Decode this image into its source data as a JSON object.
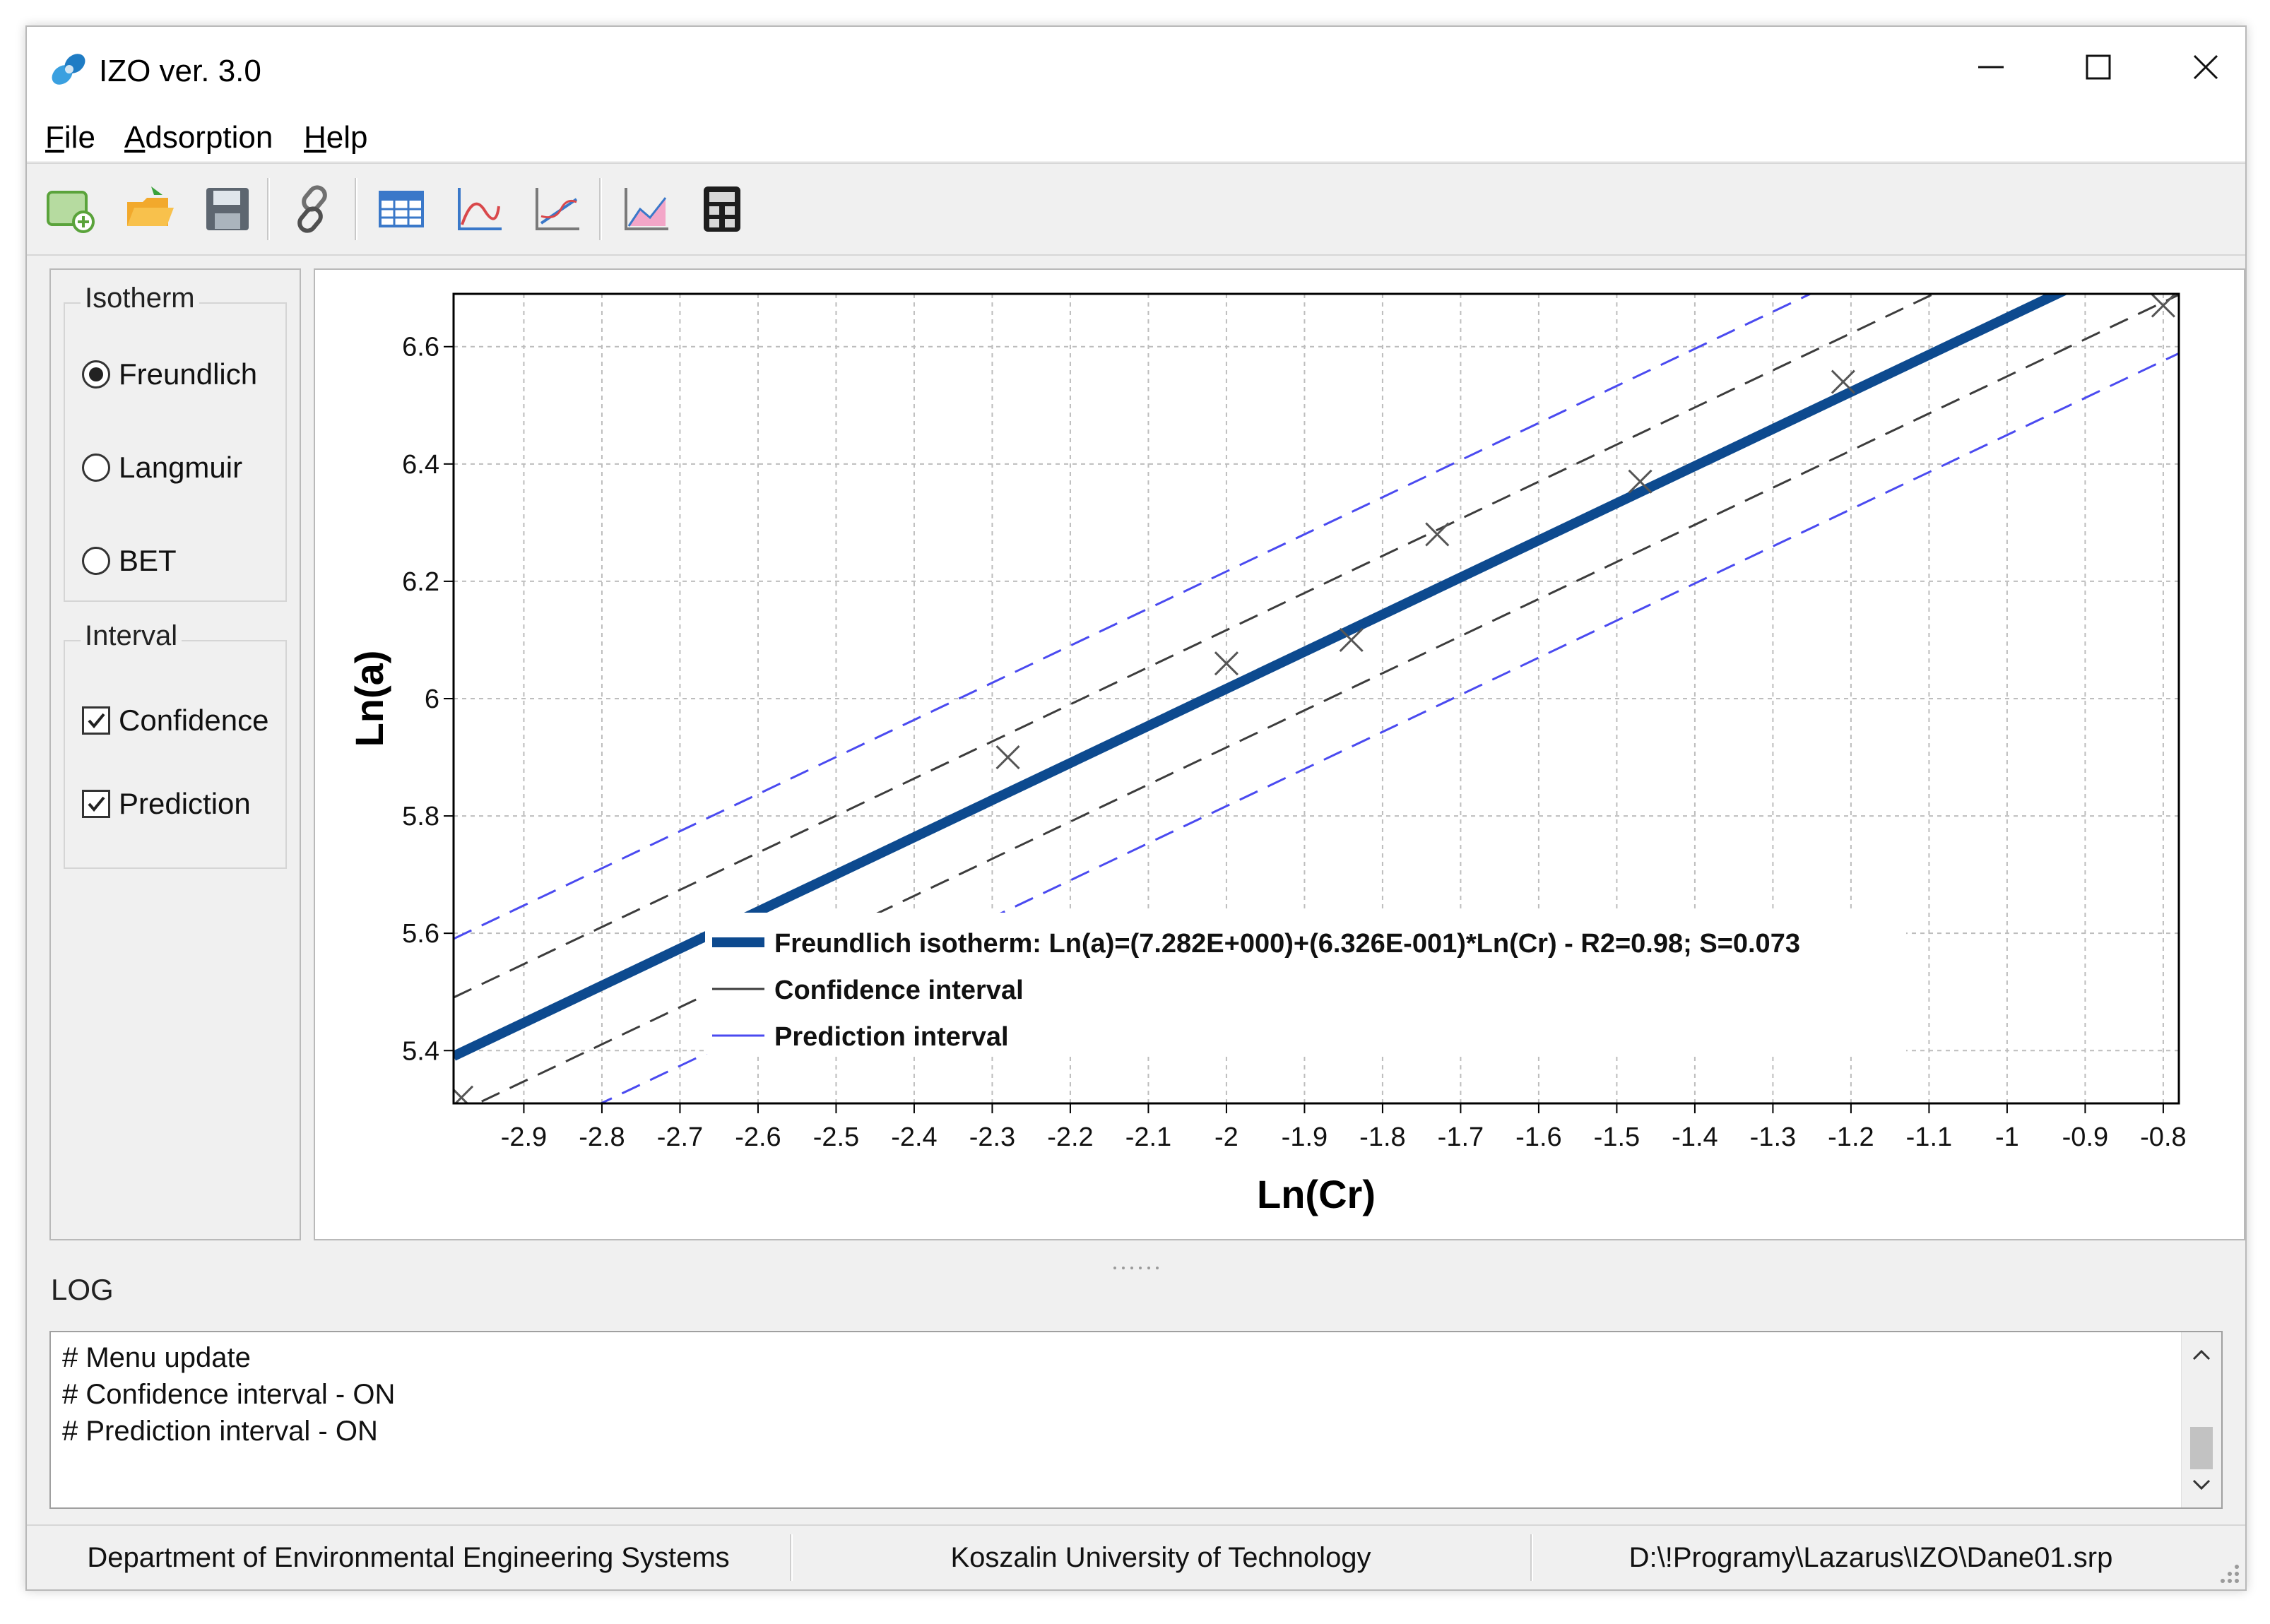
{
  "window": {
    "title": "IZO ver. 3.0"
  },
  "menu": [
    {
      "underline": "F",
      "rest": "ile"
    },
    {
      "underline": "A",
      "rest": "dsorption"
    },
    {
      "underline": "H",
      "rest": "elp"
    }
  ],
  "toolbar": {
    "icons": [
      "new-data-icon",
      "open-folder-icon",
      "save-icon",
      "link-icon",
      "table-icon",
      "isotherm-plot-icon",
      "linear-plot-icon",
      "interval-plot-icon",
      "calculator-icon"
    ]
  },
  "isotherm": {
    "title": "Isotherm",
    "options": [
      "Freundlich",
      "Langmuir",
      "BET"
    ],
    "selected": "Freundlich"
  },
  "interval": {
    "title": "Interval",
    "confidence_label": "Confidence",
    "confidence_checked": true,
    "prediction_label": "Prediction",
    "prediction_checked": true
  },
  "chart_data": {
    "type": "scatter",
    "xlabel": "Ln(Cr)",
    "ylabel": "Ln(a)",
    "xlim": [
      -2.99,
      -0.78
    ],
    "ylim": [
      5.31,
      6.69
    ],
    "x_ticks": [
      -2.9,
      -2.8,
      -2.7,
      -2.6,
      -2.5,
      -2.4,
      -2.3,
      -2.2,
      -2.1,
      -2,
      -1.9,
      -1.8,
      -1.7,
      -1.6,
      -1.5,
      -1.4,
      -1.3,
      -1.2,
      -1.1,
      -1,
      -0.9,
      -0.8
    ],
    "y_ticks": [
      5.4,
      5.6,
      5.8,
      6,
      6.2,
      6.4,
      6.6
    ],
    "grid": true,
    "legend_position": "bottom-center",
    "points": [
      {
        "x": -2.98,
        "y": 5.32
      },
      {
        "x": -2.28,
        "y": 5.9
      },
      {
        "x": -2.0,
        "y": 6.06
      },
      {
        "x": -1.84,
        "y": 6.1
      },
      {
        "x": -1.73,
        "y": 6.28
      },
      {
        "x": -1.47,
        "y": 6.37
      },
      {
        "x": -1.21,
        "y": 6.54
      },
      {
        "x": -0.8,
        "y": 6.67
      }
    ],
    "fit": {
      "intercept": 7.282,
      "slope": 0.6326
    },
    "confidence_halfwidth": 0.1,
    "prediction_halfwidth": 0.2,
    "series": [
      {
        "name": "Freundlich isotherm: Ln(a)=(7.282E+000)+(6.326E-001)*Ln(Cr) - R2=0.98; S=0.073",
        "color": "#0d4a8f"
      },
      {
        "name": "Confidence interval",
        "color": "#3c3c3c"
      },
      {
        "name": "Prediction interval",
        "color": "#4a4af0"
      }
    ]
  },
  "log": {
    "title": "LOG",
    "lines": [
      "# Menu update",
      "# Confidence interval - ON",
      "# Prediction interval - ON"
    ]
  },
  "status": {
    "left": "Department of Environmental Engineering Systems",
    "center": "Koszalin University of Technology",
    "right": "D:\\!Programy\\Lazarus\\IZO\\Dane01.srp"
  }
}
